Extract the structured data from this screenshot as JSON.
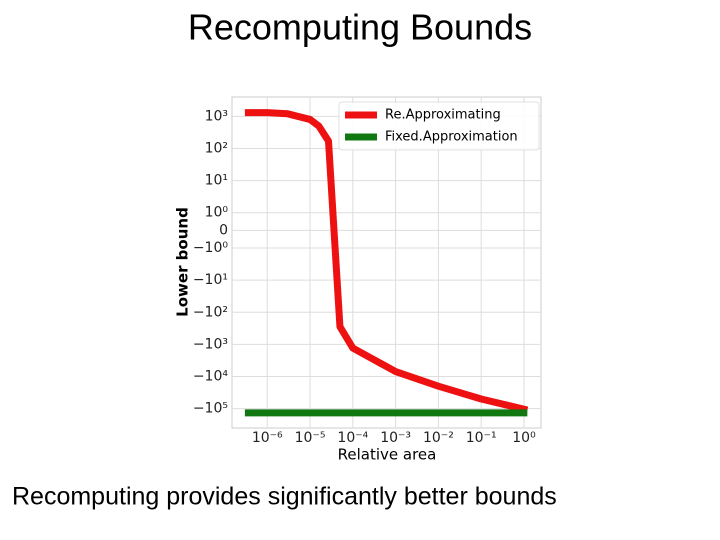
{
  "slide_title": "Recomputing Bounds",
  "caption": "Recomputing provides significantly better bounds",
  "chart_data": {
    "type": "line",
    "xlabel": "Relative area",
    "ylabel": "Lower bound",
    "xscale": "log",
    "yscale": "symlog",
    "grid": true,
    "legend": "upper right",
    "xlim": [
      1.5e-07,
      2.5
    ],
    "ylim": [
      -400000,
      4000
    ],
    "xticks": [
      {
        "value": 1e-06,
        "label": "10⁻⁶"
      },
      {
        "value": 1e-05,
        "label": "10⁻⁵"
      },
      {
        "value": 0.0001,
        "label": "10⁻⁴"
      },
      {
        "value": 0.001,
        "label": "10⁻³"
      },
      {
        "value": 0.01,
        "label": "10⁻²"
      },
      {
        "value": 0.1,
        "label": "10⁻¹"
      },
      {
        "value": 1,
        "label": "10⁰"
      }
    ],
    "yticks": [
      {
        "value": 1000,
        "label": "10³"
      },
      {
        "value": 100,
        "label": "10²"
      },
      {
        "value": 10,
        "label": "10¹"
      },
      {
        "value": 1,
        "label": "10⁰"
      },
      0,
      {
        "value": -1,
        "label": "−10⁰"
      },
      {
        "value": -10,
        "label": "−10¹"
      },
      {
        "value": -100,
        "label": "−10²"
      },
      {
        "value": -1000,
        "label": "−10³"
      },
      {
        "value": -10000,
        "label": "−10⁴"
      },
      {
        "value": -100000,
        "label": "−10⁵"
      }
    ],
    "x": [
      3e-07,
      1e-06,
      3e-06,
      1e-05,
      1.6e-05,
      2.7e-05,
      5e-05,
      0.0001,
      0.001,
      0.01,
      0.1,
      1.2
    ],
    "series": [
      {
        "name": "Re.Approximating",
        "color": "#ee1111",
        "values": [
          1300,
          1300,
          1200,
          800,
          500,
          170,
          -280,
          -1300,
          -7000,
          -20000,
          -50000,
          -110000
        ]
      },
      {
        "name": "Fixed.Approximation",
        "color": "#117711",
        "values": [
          -135000,
          -135000,
          -135000,
          -135000,
          -135000,
          -135000,
          -135000,
          -135000,
          -135000,
          -135000,
          -135000,
          -135000
        ]
      }
    ]
  }
}
